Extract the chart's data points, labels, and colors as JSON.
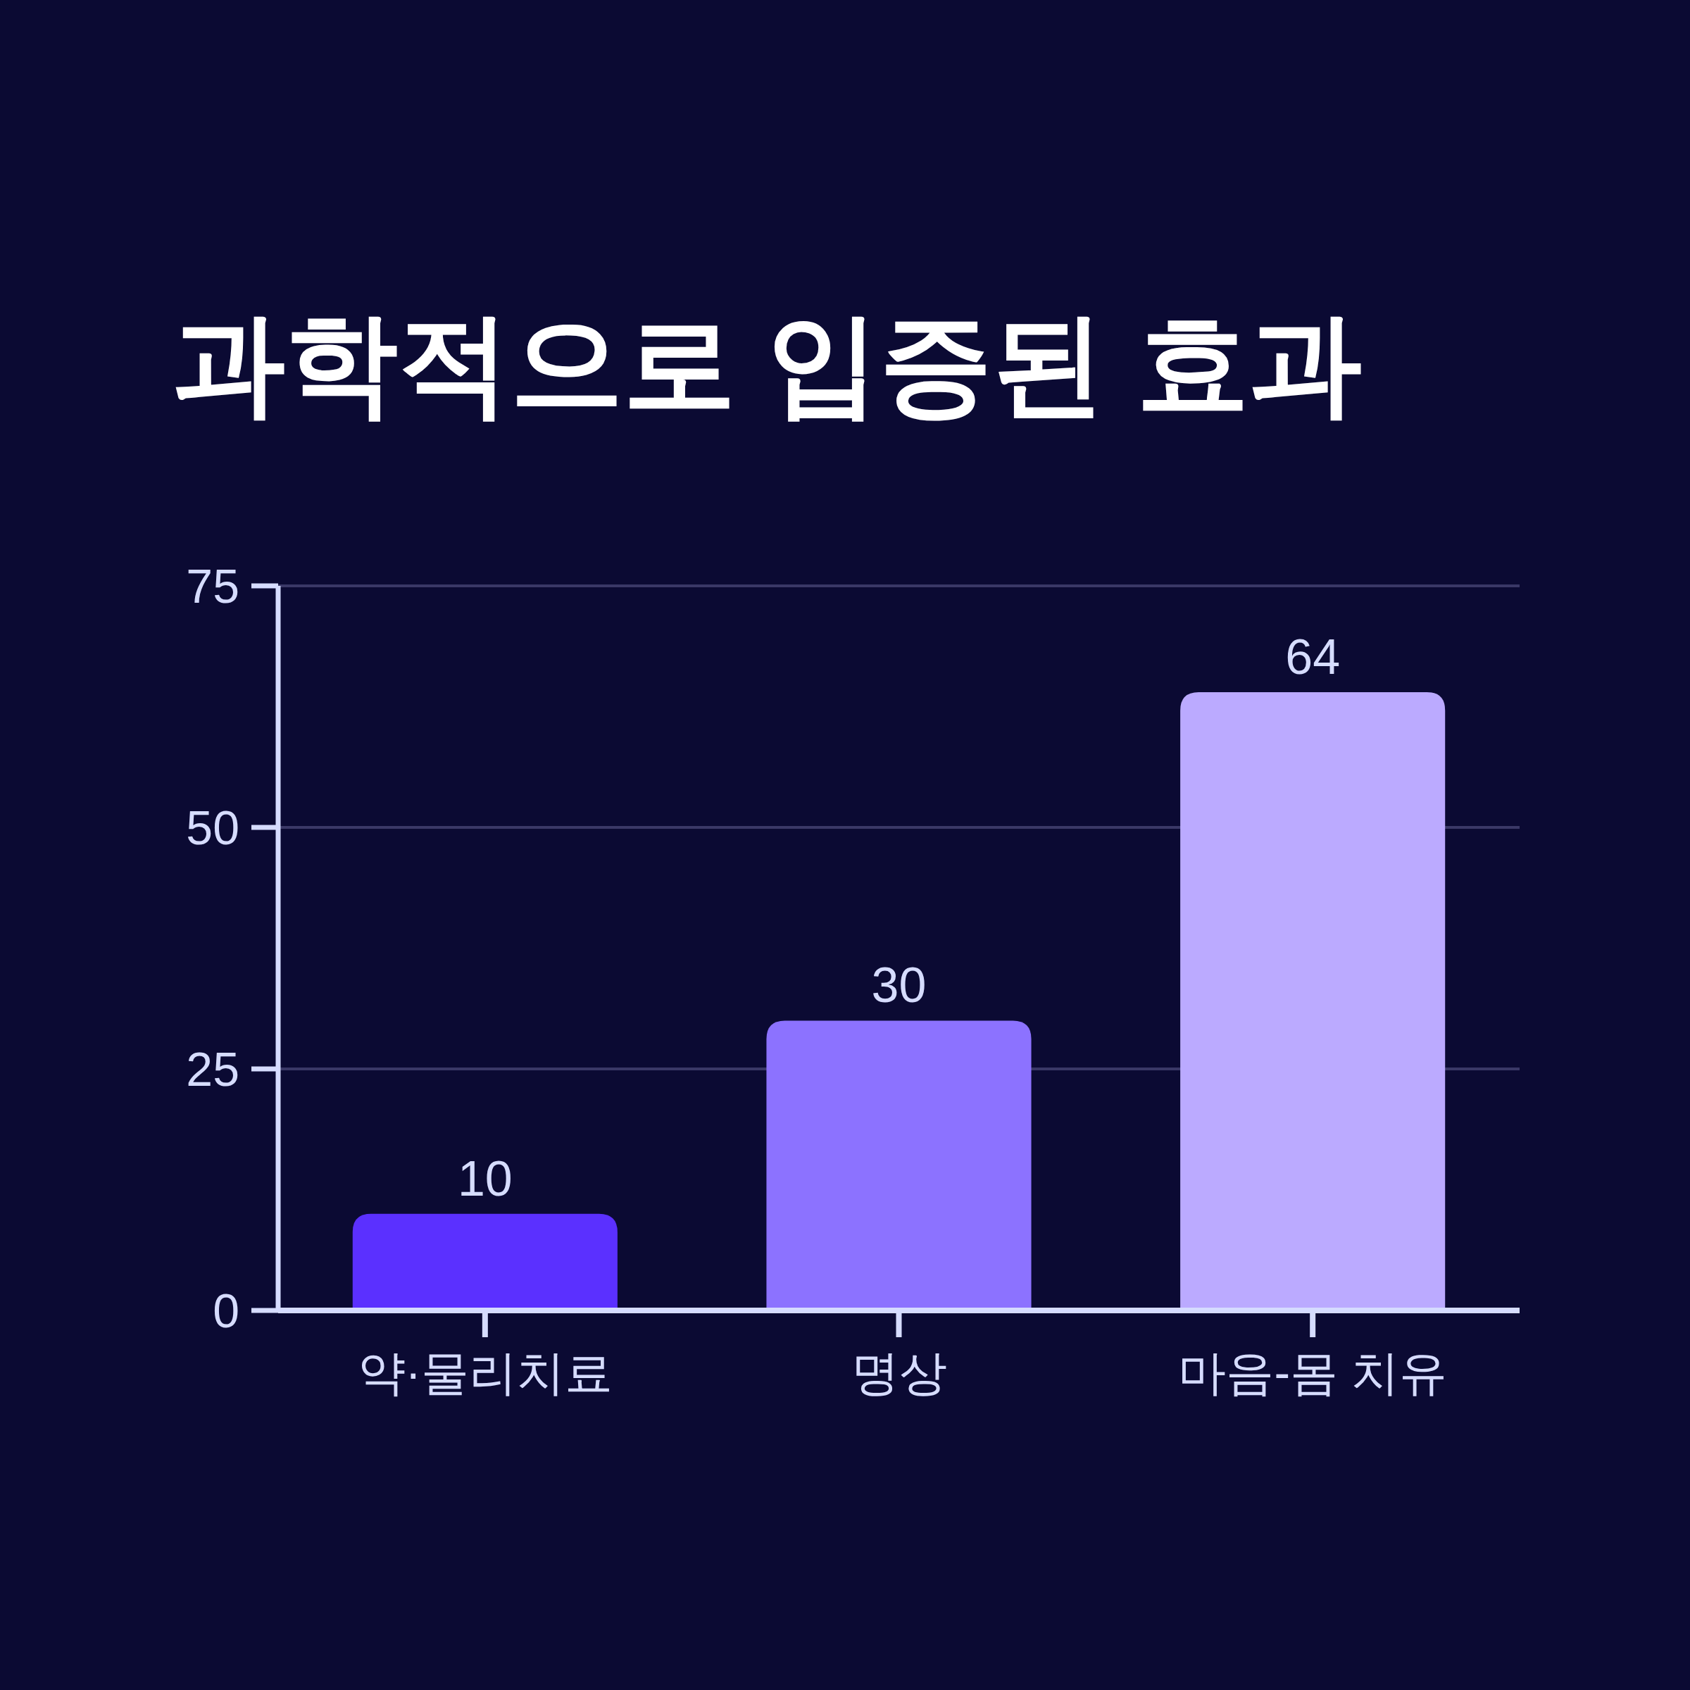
{
  "chart_data": {
    "type": "bar",
    "title": "과학적으로 입증된 효과",
    "categories": [
      "약·물리치료",
      "명상",
      "마음-몸 치유"
    ],
    "values": [
      10,
      30,
      64
    ],
    "colors": [
      "#5b30ff",
      "#8c72ff",
      "#bbaaff"
    ],
    "ylim": [
      0,
      75
    ],
    "yticks": [
      0,
      25,
      50,
      75
    ],
    "grid": "y",
    "data_labels": true
  }
}
